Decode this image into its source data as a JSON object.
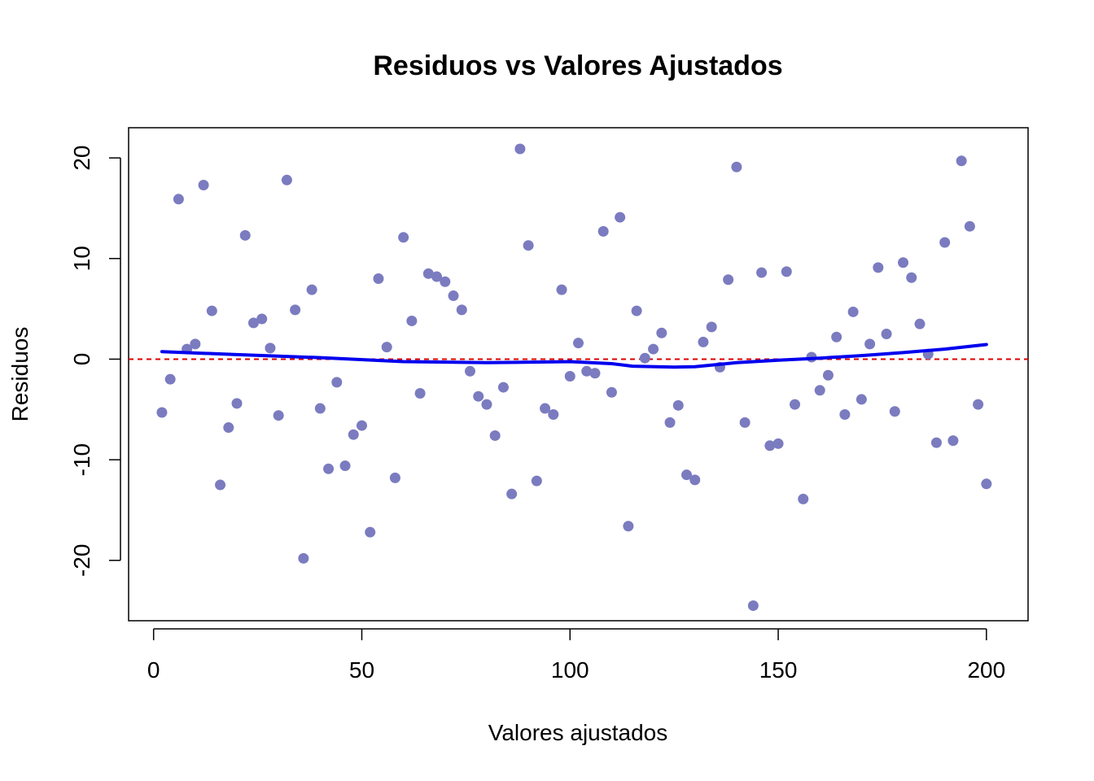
{
  "chart_data": {
    "type": "scatter",
    "title": "Residuos vs Valores Ajustados",
    "xlabel": "Valores ajustados",
    "ylabel": "Residuos",
    "xlim": [
      -6,
      210
    ],
    "ylim": [
      -26,
      23
    ],
    "xticks": [
      0,
      50,
      100,
      150,
      200
    ],
    "yticks": [
      -20,
      -10,
      0,
      10,
      20
    ],
    "grid": false,
    "point_color": "#7B7BC0",
    "smooth_color": "#0000EE",
    "reference_color": "#DD0000",
    "reference_line_y": 0,
    "points": [
      [
        2,
        -5.3
      ],
      [
        4,
        -2.0
      ],
      [
        6,
        15.9
      ],
      [
        8,
        1.0
      ],
      [
        10,
        1.5
      ],
      [
        12,
        17.3
      ],
      [
        14,
        4.8
      ],
      [
        16,
        -12.5
      ],
      [
        18,
        -6.8
      ],
      [
        20,
        -4.4
      ],
      [
        22,
        12.3
      ],
      [
        24,
        3.6
      ],
      [
        26,
        4.0
      ],
      [
        28,
        1.1
      ],
      [
        30,
        -5.6
      ],
      [
        32,
        17.8
      ],
      [
        34,
        4.9
      ],
      [
        36,
        -19.8
      ],
      [
        38,
        6.9
      ],
      [
        40,
        -4.9
      ],
      [
        42,
        -10.9
      ],
      [
        44,
        -2.3
      ],
      [
        46,
        -10.6
      ],
      [
        48,
        -7.5
      ],
      [
        50,
        -6.6
      ],
      [
        52,
        -17.2
      ],
      [
        54,
        8.0
      ],
      [
        56,
        1.2
      ],
      [
        58,
        -11.8
      ],
      [
        60,
        12.1
      ],
      [
        62,
        3.8
      ],
      [
        64,
        -3.4
      ],
      [
        66,
        8.5
      ],
      [
        68,
        8.2
      ],
      [
        70,
        7.7
      ],
      [
        72,
        6.3
      ],
      [
        74,
        4.9
      ],
      [
        76,
        -1.2
      ],
      [
        78,
        -3.7
      ],
      [
        80,
        -4.5
      ],
      [
        82,
        -7.6
      ],
      [
        84,
        -2.8
      ],
      [
        86,
        -13.4
      ],
      [
        88,
        20.9
      ],
      [
        90,
        11.3
      ],
      [
        92,
        -12.1
      ],
      [
        94,
        -4.9
      ],
      [
        96,
        -5.5
      ],
      [
        98,
        6.9
      ],
      [
        100,
        -1.7
      ],
      [
        102,
        1.6
      ],
      [
        104,
        -1.2
      ],
      [
        106,
        -1.4
      ],
      [
        108,
        12.7
      ],
      [
        110,
        -3.3
      ],
      [
        112,
        14.1
      ],
      [
        114,
        -16.6
      ],
      [
        116,
        4.8
      ],
      [
        118,
        0.1
      ],
      [
        120,
        1.0
      ],
      [
        122,
        2.6
      ],
      [
        124,
        -6.3
      ],
      [
        126,
        -4.6
      ],
      [
        128,
        -11.5
      ],
      [
        130,
        -12.0
      ],
      [
        132,
        1.7
      ],
      [
        134,
        3.2
      ],
      [
        136,
        -0.8
      ],
      [
        138,
        7.9
      ],
      [
        140,
        19.1
      ],
      [
        142,
        -6.3
      ],
      [
        144,
        -24.5
      ],
      [
        146,
        8.6
      ],
      [
        148,
        -8.6
      ],
      [
        150,
        -8.4
      ],
      [
        152,
        8.7
      ],
      [
        154,
        -4.5
      ],
      [
        156,
        -13.9
      ],
      [
        158,
        0.2
      ],
      [
        160,
        -3.1
      ],
      [
        162,
        -1.6
      ],
      [
        164,
        2.2
      ],
      [
        166,
        -5.5
      ],
      [
        168,
        4.7
      ],
      [
        170,
        -4.0
      ],
      [
        172,
        1.5
      ],
      [
        174,
        9.1
      ],
      [
        176,
        2.5
      ],
      [
        178,
        -5.2
      ],
      [
        180,
        9.6
      ],
      [
        182,
        8.1
      ],
      [
        184,
        3.5
      ],
      [
        186,
        0.5
      ],
      [
        188,
        -8.3
      ],
      [
        190,
        11.6
      ],
      [
        192,
        -8.1
      ],
      [
        194,
        19.7
      ],
      [
        196,
        13.2
      ],
      [
        198,
        -4.5
      ],
      [
        200,
        -12.4
      ]
    ],
    "smooth": [
      [
        2,
        0.75
      ],
      [
        20,
        0.45
      ],
      [
        40,
        0.15
      ],
      [
        60,
        -0.25
      ],
      [
        80,
        -0.35
      ],
      [
        100,
        -0.25
      ],
      [
        110,
        -0.45
      ],
      [
        115,
        -0.7
      ],
      [
        125,
        -0.8
      ],
      [
        130,
        -0.75
      ],
      [
        140,
        -0.35
      ],
      [
        150,
        -0.1
      ],
      [
        160,
        0.1
      ],
      [
        170,
        0.35
      ],
      [
        180,
        0.65
      ],
      [
        190,
        1.0
      ],
      [
        200,
        1.45
      ]
    ]
  }
}
